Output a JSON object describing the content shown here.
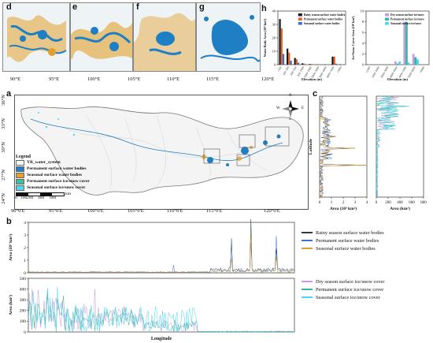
{
  "panels": {
    "d": "d",
    "e": "e",
    "f": "f",
    "g": "g",
    "h": "h",
    "a": "a",
    "b": "b",
    "c": "c"
  },
  "top_axis": {
    "ticks": [
      "90°E",
      "95°E",
      "100°E",
      "105°E",
      "110°E",
      "115°E",
      "120°E"
    ]
  },
  "map": {
    "lat_ticks": [
      "36°N",
      "33°N",
      "30°N",
      "27°N",
      "24°N"
    ],
    "lon_ticks": [
      "90°0'E",
      "95°0'E",
      "100°0'E",
      "105°0'E",
      "110°0'E",
      "115°0'E",
      "120°0'E"
    ],
    "north_labels": {
      "n": "N",
      "s": "S",
      "w": "W",
      "e": "E"
    },
    "legend_title": "Legend",
    "legend_items": [
      {
        "label": "YR_water_system",
        "color": "#ffffff"
      },
      {
        "label": "Permanent surface water bodies",
        "color": "#1f7fc4"
      },
      {
        "label": "Seasonal surface water bodies",
        "color": "#e3a12c"
      },
      {
        "label": "Permanent surface ice/snow cover",
        "color": "#3dbf9f"
      },
      {
        "label": "Seasonal surface ice/snow cover",
        "color": "#4fd8ee"
      }
    ],
    "scale": {
      "ticks": [
        "0",
        "100",
        "200",
        "400",
        "600"
      ],
      "unit": "km"
    },
    "colors": {
      "water": "#1f7fc4",
      "seasonal": "#e3a12c",
      "basin": "#f3f3f3",
      "border": "#666666"
    }
  },
  "chart_data": [
    {
      "id": "h-left",
      "type": "bar",
      "xlabel": "Elevation (m)",
      "ylabel": "Water Body Area (10³ km²)",
      "categories": [
        "<100",
        "100~200",
        "200~500",
        "500~1000",
        "1000~2000",
        "2000~3000",
        "3000~4000",
        "4000~5000",
        ">5000"
      ],
      "ylim": [
        0,
        40
      ],
      "yticks": [
        0,
        10,
        20,
        30,
        40
      ],
      "series": [
        {
          "name": "Rainy season surface water bodies",
          "color": "#1a1a1a",
          "values": [
            34,
            12,
            5,
            1,
            0.5,
            0.2,
            0.2,
            6,
            0.3
          ]
        },
        {
          "name": "Permanent surface water bodies",
          "color": "#e0612a",
          "values": [
            27,
            9,
            4,
            0.8,
            0.4,
            0.2,
            0.2,
            6,
            0.2
          ]
        },
        {
          "name": "Seasonal surface water bodies",
          "color": "#3b6fd1",
          "values": [
            8,
            3,
            1.5,
            0.3,
            0.1,
            0.05,
            0.05,
            0.8,
            0.1
          ]
        }
      ]
    },
    {
      "id": "h-right",
      "type": "bar",
      "xlabel": "Elevation (m)",
      "ylabel": "Ice/Snow Cover Area (10³ km²)",
      "categories": [
        "<1000",
        "1000~2000",
        "2000~3000",
        "3000~4000",
        "4000~5000",
        "5000~6000",
        ">6000"
      ],
      "ylim": [
        0,
        10
      ],
      "yticks": [
        0,
        2,
        4,
        6,
        8,
        10
      ],
      "series": [
        {
          "name": "Dry season surface ice/snow",
          "color": "#c89ae0",
          "values": [
            0,
            0,
            0,
            0.6,
            8,
            2,
            0
          ]
        },
        {
          "name": "Permanent surface ice/snow",
          "color": "#2fb8a0",
          "values": [
            0,
            0,
            0,
            0.2,
            8,
            1.4,
            0
          ]
        },
        {
          "name": "Seasonal surface ice/snow",
          "color": "#49d6f0",
          "values": [
            0,
            0,
            0,
            0.6,
            0.4,
            1,
            0
          ]
        }
      ]
    },
    {
      "id": "b-top",
      "type": "line",
      "xlabel": "",
      "ylabel": "Area (10³ km²)",
      "ylim": [
        0,
        4
      ],
      "yticks": [
        0,
        1,
        2,
        3,
        4
      ],
      "legend": [
        {
          "name": "Rainy season surface water bodies",
          "color": "#2a3b4c"
        },
        {
          "name": "Permanent surface water bodies",
          "color": "#3b6fd1"
        },
        {
          "name": "Seasonal surface water bodies",
          "color": "#e3a12c"
        }
      ]
    },
    {
      "id": "b-bottom",
      "type": "line",
      "xlabel": "Longitude",
      "ylabel": "Area (km²)",
      "ylim": [
        0,
        500
      ],
      "yticks": [
        0,
        100,
        200,
        300,
        400,
        500
      ],
      "legend": [
        {
          "name": "Dry season surface ice/snow cover",
          "color": "#c89ae0"
        },
        {
          "name": "Permanent surface ice/snow cover",
          "color": "#2fb8a0"
        },
        {
          "name": "Seasonal surface ice/snow cover",
          "color": "#49d6f0"
        }
      ]
    },
    {
      "id": "c-left",
      "type": "line",
      "xlabel": "Area (10³ km²)",
      "ylabel": "Latitude",
      "xticks": [
        "0",
        "1",
        "2",
        "3",
        "4"
      ]
    },
    {
      "id": "c-right",
      "type": "line",
      "xlabel": "Area (km²)",
      "ylabel": "",
      "xticks": [
        "0",
        "200",
        "400",
        "600",
        "800"
      ]
    }
  ]
}
